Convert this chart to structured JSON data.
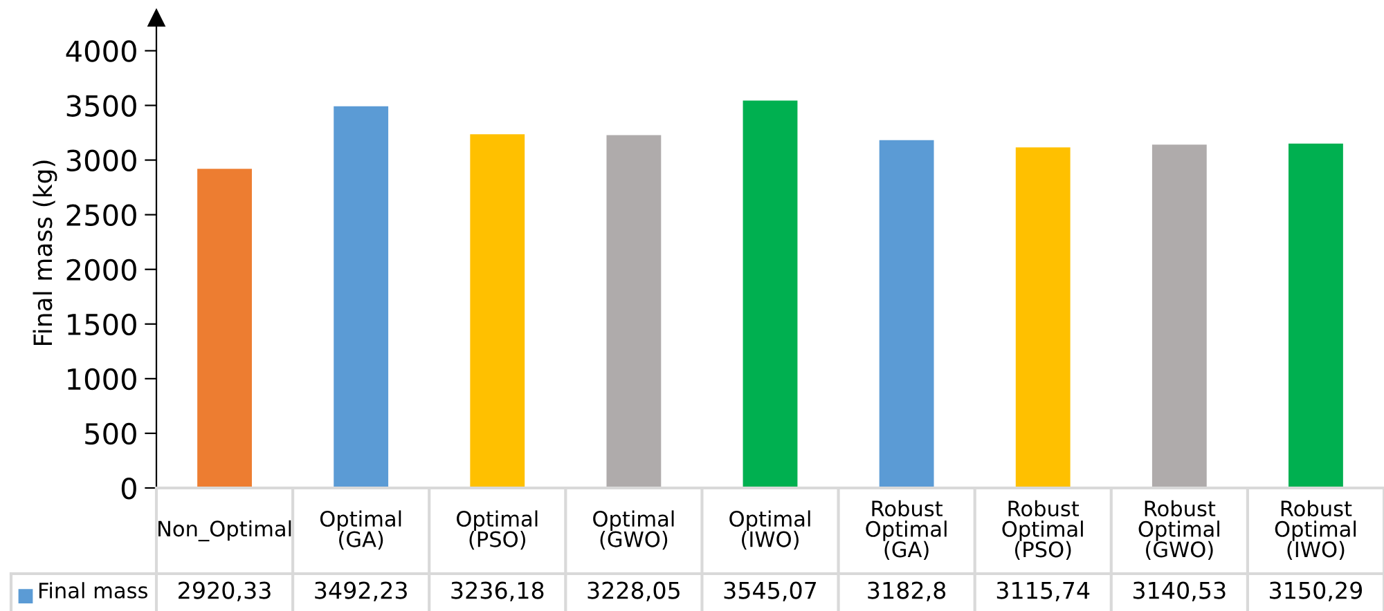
{
  "chart_data": {
    "type": "bar",
    "ylabel": "Final mass (kg)",
    "categories": [
      "Non_Optimal",
      "Optimal\n(GA)",
      "Optimal\n(PSO)",
      "Optimal\n(GWO)",
      "Optimal\n(IWO)",
      "Robust\nOptimal\n(GA)",
      "Robust\nOptimal\n(PSO)",
      "Robust\nOptimal\n(GWO)",
      "Robust\nOptimal\n(IWO)"
    ],
    "series": [
      {
        "name": "Final mass",
        "color": "#5b9bd5",
        "colors": [
          "#ed7d31",
          "#5b9bd5",
          "#ffc000",
          "#afabab",
          "#00b050",
          "#5b9bd5",
          "#ffc000",
          "#afabab",
          "#00b050"
        ],
        "values": [
          2920.33,
          3492.23,
          3236.18,
          3228.05,
          3545.07,
          3182.8,
          3115.74,
          3140.53,
          3150.29
        ],
        "value_labels": [
          "2920,33",
          "3492,23",
          "3236,18",
          "3228,05",
          "3545,07",
          "3182,8",
          "3115,74",
          "3140,53",
          "3150,29"
        ]
      }
    ],
    "ylim": [
      0,
      4300
    ],
    "yticks": [
      0,
      500,
      1000,
      1500,
      2000,
      2500,
      3000,
      3500,
      4000
    ],
    "grid": false,
    "legend": "bottom left"
  }
}
